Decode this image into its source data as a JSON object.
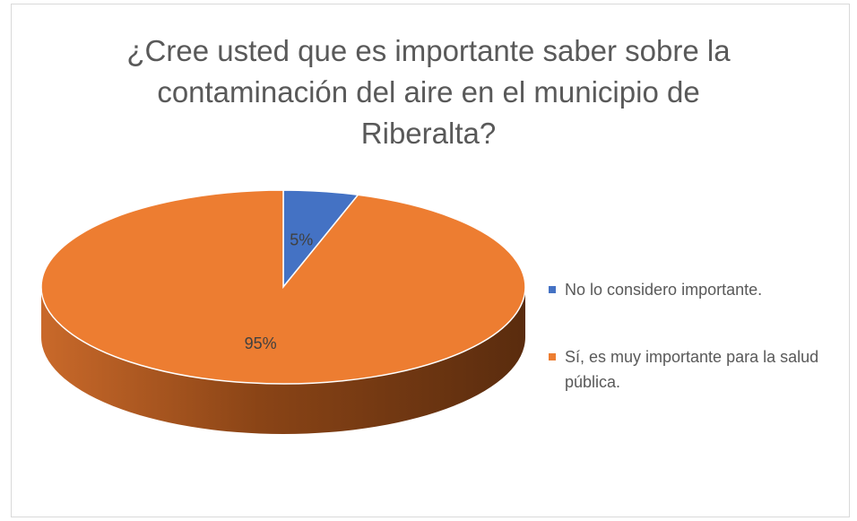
{
  "chart_data": {
    "type": "pie",
    "title": "¿Cree usted que es importante saber sobre la contaminación del aire en el municipio de Riberalta?",
    "categories": [
      "No lo considero importante.",
      "Sí, es muy importante para la salud pública."
    ],
    "values": [
      5,
      95
    ],
    "value_labels": [
      "5%",
      "95%"
    ],
    "colors": [
      "#4472c4",
      "#ed7d31"
    ],
    "legend": "right"
  }
}
